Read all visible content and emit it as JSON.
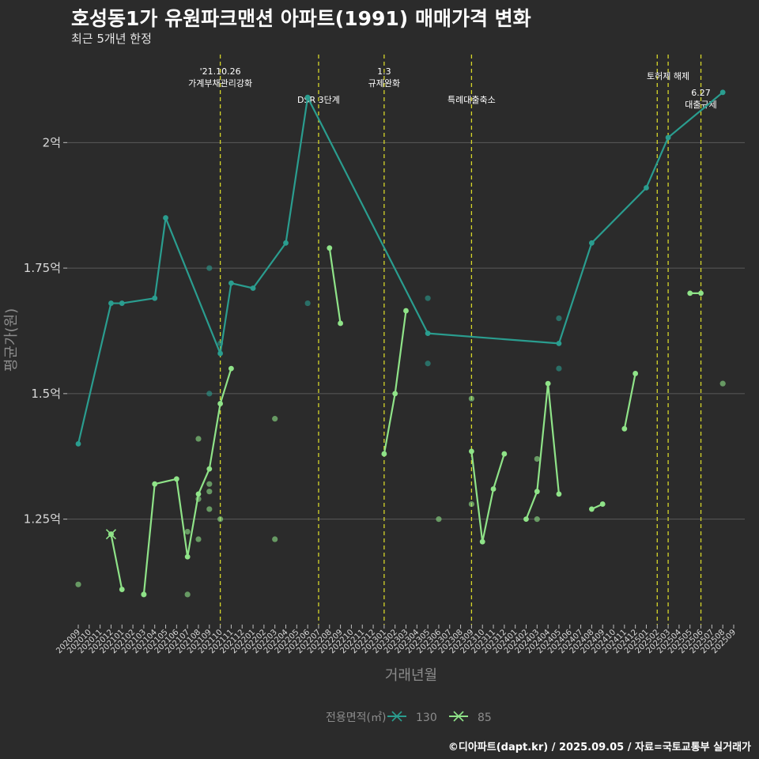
{
  "title": "호성동1가 유원파크맨션 아파트(1991) 매매가격 변화",
  "subtitle": "최근 5개년 한정",
  "caption": "©디아파트(dapt.kr) / 2025.09.05 / 자료=국토교통부 실거래가",
  "chart_data": {
    "type": "line",
    "xlabel": "거래년월",
    "ylabel": "평균가(원)",
    "ylim": [
      1.04,
      2.18
    ],
    "y_ticks": [
      {
        "value": 1.25,
        "label": "1.25억"
      },
      {
        "value": 1.5,
        "label": "1.5억"
      },
      {
        "value": 1.75,
        "label": "1.75억"
      },
      {
        "value": 2.0,
        "label": "2억"
      }
    ],
    "x_ticks": [
      "202009",
      "202010",
      "202011",
      "202012",
      "202101",
      "202102",
      "202103",
      "202104",
      "202105",
      "202106",
      "202107",
      "202108",
      "202109",
      "202110",
      "202111",
      "202112",
      "202201",
      "202202",
      "202203",
      "202204",
      "202205",
      "202206",
      "202207",
      "202208",
      "202209",
      "202210",
      "202211",
      "202212",
      "202301",
      "202302",
      "202303",
      "202304",
      "202305",
      "202306",
      "202307",
      "202308",
      "202309",
      "202310",
      "202311",
      "202312",
      "202401",
      "202402",
      "202403",
      "202404",
      "202405",
      "202406",
      "202407",
      "202408",
      "202409",
      "202410",
      "202411",
      "202412",
      "202501",
      "202502",
      "202503",
      "202504",
      "202505",
      "202506",
      "202507",
      "202508",
      "202509"
    ],
    "annotations": [
      {
        "x": 13,
        "lines": [
          "'21.10.26",
          "가계부채관리강화"
        ],
        "row": 0
      },
      {
        "x": 22,
        "lines": [
          "DSR 3단계"
        ],
        "row": 2
      },
      {
        "x": 28,
        "lines": [
          "1.3",
          "규제완화"
        ],
        "row": 0
      },
      {
        "x": 36,
        "lines": [
          "특례대출축소"
        ],
        "row": 2
      },
      {
        "x": 53,
        "lines": [],
        "row": 1
      },
      {
        "x": 54,
        "lines": [
          "토허제 해제"
        ],
        "row": 1
      },
      {
        "x": 57,
        "lines": [
          "6.27",
          "대출규제"
        ],
        "row": 3
      }
    ],
    "legend_title": "전용면적(㎡)",
    "series": [
      {
        "name": "130",
        "color": "#2a9d8f",
        "line": [
          [
            0,
            1.4
          ],
          [
            3,
            1.68
          ],
          [
            4,
            1.68
          ],
          [
            7,
            1.69
          ],
          [
            8,
            1.85
          ],
          [
            13,
            1.58
          ],
          [
            14,
            1.72
          ],
          [
            16,
            1.71
          ],
          [
            19,
            1.8
          ],
          [
            21,
            2.09
          ],
          [
            32,
            1.62
          ],
          [
            44,
            1.6
          ],
          [
            47,
            1.8
          ],
          [
            52,
            1.91
          ],
          [
            54,
            2.01
          ],
          [
            59,
            2.1
          ]
        ],
        "points": [
          [
            12,
            1.75
          ],
          [
            12,
            1.5
          ],
          [
            13,
            1.6
          ],
          [
            21,
            1.68
          ],
          [
            32,
            1.69
          ],
          [
            32,
            1.56
          ],
          [
            44,
            1.65
          ],
          [
            44,
            1.55
          ]
        ]
      },
      {
        "name": "85",
        "color": "#8fe388",
        "segments": [
          [
            [
              3,
              1.22
            ],
            [
              4,
              1.11
            ]
          ],
          [
            [
              6,
              1.1
            ],
            [
              7,
              1.32
            ],
            [
              9,
              1.33
            ],
            [
              10,
              1.175
            ],
            [
              11,
              1.3
            ],
            [
              12,
              1.35
            ],
            [
              13,
              1.48
            ],
            [
              14,
              1.55
            ]
          ],
          [
            [
              23,
              1.79
            ],
            [
              24,
              1.64
            ]
          ],
          [
            [
              28,
              1.38
            ],
            [
              29,
              1.5
            ],
            [
              30,
              1.665
            ]
          ],
          [
            [
              36,
              1.385
            ],
            [
              37,
              1.205
            ],
            [
              38,
              1.31
            ],
            [
              39,
              1.38
            ]
          ],
          [
            [
              41,
              1.25
            ],
            [
              42,
              1.305
            ],
            [
              43,
              1.52
            ],
            [
              44,
              1.3
            ]
          ],
          [
            [
              47,
              1.27
            ],
            [
              48,
              1.28
            ]
          ],
          [
            [
              50,
              1.43
            ],
            [
              51,
              1.54
            ]
          ],
          [
            [
              56,
              1.7
            ],
            [
              57,
              1.7
            ]
          ]
        ],
        "points": [
          [
            0,
            1.12
          ],
          [
            3,
            1.22
          ],
          [
            6,
            1.1
          ],
          [
            10,
            1.1
          ],
          [
            10,
            1.225
          ],
          [
            11,
            1.41
          ],
          [
            11,
            1.29
          ],
          [
            11,
            1.21
          ],
          [
            12,
            1.32
          ],
          [
            12,
            1.305
          ],
          [
            12,
            1.27
          ],
          [
            13,
            1.25
          ],
          [
            18,
            1.45
          ],
          [
            18,
            1.21
          ],
          [
            33,
            1.25
          ],
          [
            36,
            1.49
          ],
          [
            36,
            1.28
          ],
          [
            42,
            1.25
          ],
          [
            42,
            1.37
          ],
          [
            59,
            1.52
          ]
        ]
      }
    ]
  }
}
